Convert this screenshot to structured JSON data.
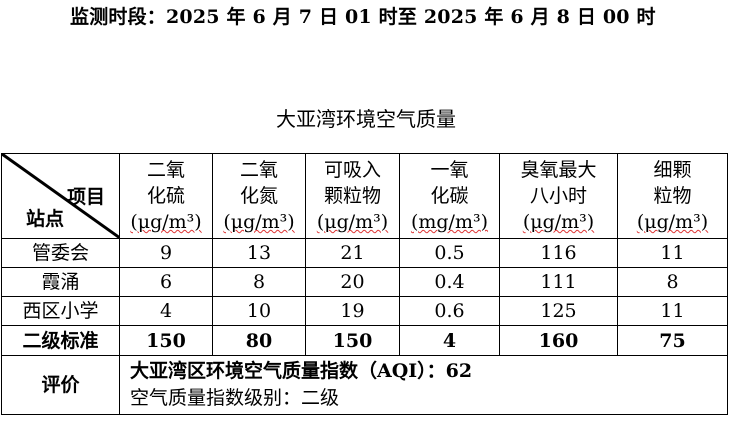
{
  "period": "监测时段：2025 年 6 月 7 日 01 时至 2025 年 6 月 8 日 00 时",
  "title": "大亚湾环境空气质量",
  "corner": {
    "top": "项目",
    "bottom": "站点"
  },
  "columns": [
    {
      "name_line1": "二氧",
      "name_line2": "化硫",
      "unit": "(μg/m³)"
    },
    {
      "name_line1": "二氧",
      "name_line2": "化氮",
      "unit": "(μg/m³)"
    },
    {
      "name_line1": "可吸入",
      "name_line2": "颗粒物",
      "unit": "(μg/m³)"
    },
    {
      "name_line1": "一氧",
      "name_line2": "化碳",
      "unit": "(mg/m³)"
    },
    {
      "name_line1": "臭氧最大",
      "name_line2": "八小时",
      "unit": "(μg/m³)"
    },
    {
      "name_line1": "细颗",
      "name_line2": "粒物",
      "unit": "(μg/m³)"
    }
  ],
  "rows": [
    {
      "station": "管委会",
      "values": [
        "9",
        "13",
        "21",
        "0.5",
        "116",
        "11"
      ]
    },
    {
      "station": "霞涌",
      "values": [
        "6",
        "8",
        "20",
        "0.4",
        "111",
        "8"
      ]
    },
    {
      "station": "西区小学",
      "values": [
        "4",
        "10",
        "19",
        "0.6",
        "125",
        "11"
      ]
    }
  ],
  "standard": {
    "label": "二级标准",
    "values": [
      "150",
      "80",
      "150",
      "4",
      "160",
      "75"
    ]
  },
  "evaluation": {
    "label": "评价",
    "line1": "大亚湾区环境空气质量指数（AQI）：62",
    "line2": "空气质量指数级别：二级"
  }
}
